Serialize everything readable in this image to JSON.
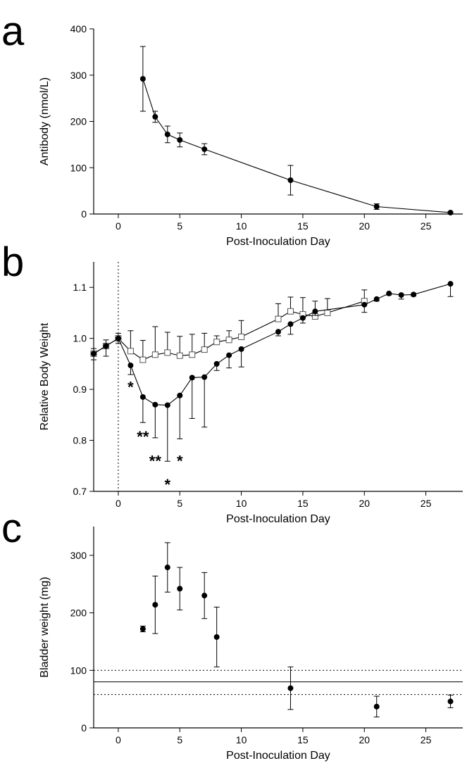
{
  "chart_data": [
    {
      "panel": "a",
      "type": "line",
      "xlabel": "Post-Inoculation Day",
      "ylabel": "Antibody (nmol/L)",
      "xlim": [
        -2,
        28
      ],
      "ylim": [
        0,
        400
      ],
      "xticks": [
        0,
        5,
        10,
        15,
        20,
        25
      ],
      "yticks": [
        0,
        100,
        200,
        300,
        400
      ],
      "grid": false,
      "series": [
        {
          "marker": "filled-circle",
          "x": [
            2,
            3,
            4,
            5,
            7,
            14,
            21,
            27
          ],
          "y": [
            292,
            210,
            172,
            160,
            140,
            73,
            16,
            3
          ],
          "err_low": [
            70,
            12,
            18,
            15,
            12,
            32,
            6,
            2
          ],
          "err_high": [
            70,
            12,
            18,
            15,
            12,
            32,
            6,
            2
          ]
        }
      ]
    },
    {
      "panel": "b",
      "type": "line",
      "xlabel": "Post-Inoculation Day",
      "ylabel": "Relative Body Weight",
      "xlim": [
        -2,
        28
      ],
      "ylim": [
        0.7,
        1.15
      ],
      "xticks": [
        0,
        5,
        10,
        15,
        20,
        25
      ],
      "yticks": [
        0.7,
        0.8,
        0.9,
        1.0,
        1.1
      ],
      "ytick_labels": [
        "0.7",
        "0.8",
        "0.9",
        "1.0",
        "1.1"
      ],
      "grid": false,
      "reference_lines": [
        {
          "orientation": "vertical",
          "x": 0,
          "style": "dotted"
        }
      ],
      "series": [
        {
          "marker": "open-square",
          "x": [
            -2,
            -1,
            0,
            1,
            2,
            3,
            4,
            5,
            6,
            7,
            8,
            9,
            10,
            13,
            14,
            15,
            16,
            17,
            20
          ],
          "y": [
            0.97,
            0.985,
            1.0,
            0.975,
            0.958,
            0.968,
            0.972,
            0.966,
            0.968,
            0.978,
            0.993,
            0.997,
            1.003,
            1.038,
            1.053,
            1.047,
            1.043,
            1.05,
            1.073
          ],
          "err_low": [
            0,
            0,
            0,
            0,
            0,
            0,
            0,
            0,
            0,
            0,
            0,
            0,
            0,
            0,
            0,
            0,
            0,
            0,
            0
          ],
          "err_high": [
            0.01,
            0.012,
            0.01,
            0.04,
            0.038,
            0.055,
            0.04,
            0.038,
            0.04,
            0.032,
            0.012,
            0.018,
            0.032,
            0.03,
            0.028,
            0.033,
            0.03,
            0.028,
            0.022
          ]
        },
        {
          "marker": "filled-circle",
          "x": [
            -2,
            -1,
            0,
            1,
            2,
            3,
            4,
            5,
            6,
            7,
            8,
            9,
            10,
            13,
            14,
            15,
            16,
            20,
            21,
            22,
            23,
            24,
            27
          ],
          "y": [
            0.97,
            0.985,
            1.0,
            0.947,
            0.885,
            0.87,
            0.869,
            0.888,
            0.923,
            0.924,
            0.95,
            0.967,
            0.979,
            1.013,
            1.028,
            1.04,
            1.053,
            1.066,
            1.077,
            1.088,
            1.085,
            1.086,
            1.107
          ],
          "err_low": [
            0.012,
            0.02,
            0.01,
            0.018,
            0.05,
            0.065,
            0.11,
            0.085,
            0.08,
            0.098,
            0.013,
            0.025,
            0.035,
            0.008,
            0.02,
            0.01,
            0.008,
            0.015,
            0.004,
            0.003,
            0.008,
            0.003,
            0.025
          ],
          "err_high": [
            0,
            0,
            0,
            0,
            0,
            0,
            0,
            0,
            0,
            0,
            0,
            0,
            0,
            0,
            0,
            0,
            0,
            0,
            0,
            0,
            0,
            0,
            0
          ]
        }
      ],
      "annotations": [
        {
          "text": "*",
          "x": 1,
          "y": 0.905
        },
        {
          "text": "**",
          "x": 2,
          "y": 0.808
        },
        {
          "text": "**",
          "x": 3,
          "y": 0.76
        },
        {
          "text": "*",
          "x": 4,
          "y": 0.714
        },
        {
          "text": "*",
          "x": 5,
          "y": 0.76
        }
      ]
    },
    {
      "panel": "c",
      "type": "scatter",
      "xlabel": "Post-Inoculation Day",
      "ylabel": "Bladder weight (mg)",
      "xlim": [
        -2,
        28
      ],
      "ylim": [
        0,
        350
      ],
      "xticks": [
        0,
        5,
        10,
        15,
        20,
        25
      ],
      "yticks": [
        0,
        100,
        200,
        300
      ],
      "grid": false,
      "reference_lines": [
        {
          "orientation": "horizontal",
          "y": 80,
          "style": "solid"
        },
        {
          "orientation": "horizontal",
          "y": 100,
          "style": "dotted"
        },
        {
          "orientation": "horizontal",
          "y": 58,
          "style": "dotted"
        }
      ],
      "series": [
        {
          "marker": "filled-circle",
          "x": [
            2,
            3,
            4,
            5,
            7,
            8,
            14,
            21,
            27
          ],
          "y": [
            172,
            214,
            279,
            242,
            230,
            158,
            69,
            37,
            46
          ],
          "err_low": [
            5,
            50,
            43,
            37,
            40,
            52,
            37,
            18,
            11
          ],
          "err_high": [
            5,
            50,
            43,
            37,
            40,
            52,
            37,
            18,
            11
          ]
        }
      ]
    }
  ],
  "panel_labels": [
    "a",
    "b",
    "c"
  ]
}
